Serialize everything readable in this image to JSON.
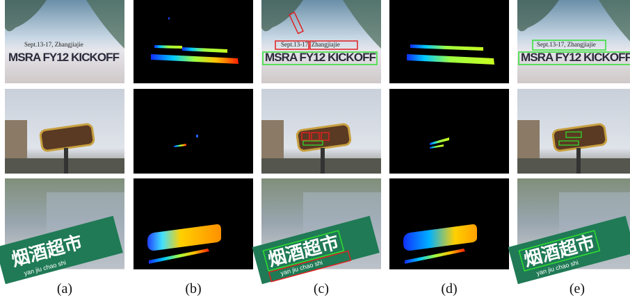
{
  "figure": {
    "captions": [
      "(a)",
      "(b)",
      "(c)",
      "(d)",
      "(e)"
    ],
    "scene_text": {
      "row1": [
        "Sept.13-17, Zhangjiajie",
        "MSRA FY12 KICKOFF"
      ],
      "row3": [
        "烟酒超市",
        "yan jiu chao shi"
      ]
    }
  }
}
